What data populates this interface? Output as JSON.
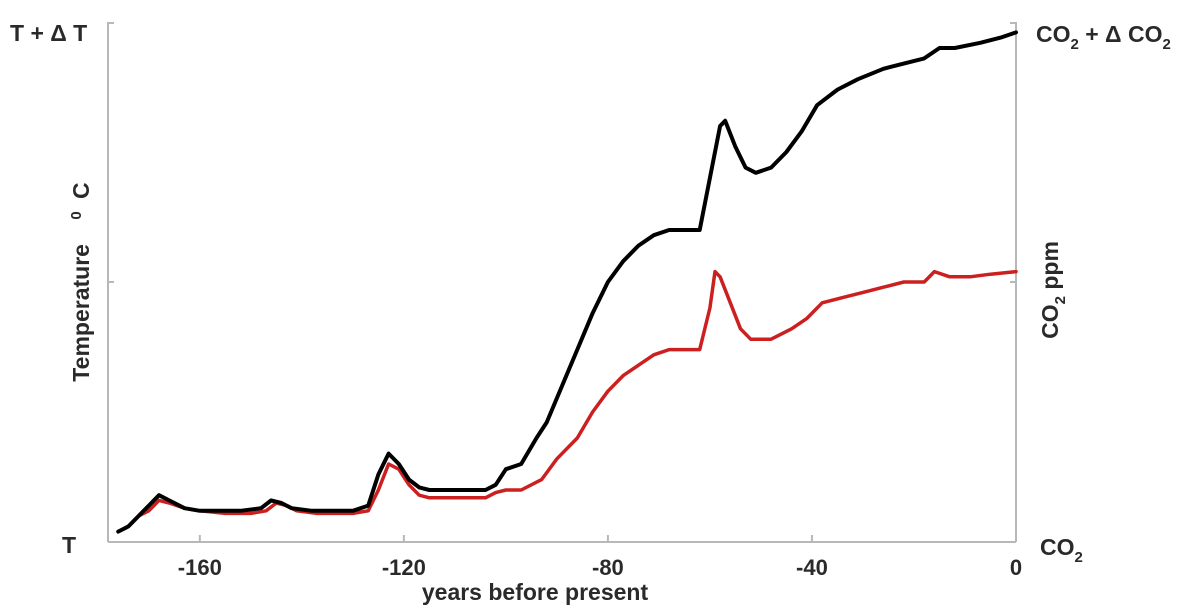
{
  "chart_data": {
    "type": "line",
    "xlabel": "years before present",
    "x_ticks": [
      "-160",
      "-120",
      "-80",
      "-40",
      "0"
    ],
    "x_tick_values": [
      -160,
      -120,
      -80,
      -40,
      0
    ],
    "xlim": [
      -178,
      0
    ],
    "left_axis": {
      "label_text": "Temperature",
      "label_superscript": "0",
      "label_unit": "C",
      "top_label": "T + Δ T",
      "bottom_label": "T"
    },
    "right_axis": {
      "label_main": "CO",
      "label_sub": "2",
      "label_unit": " ppm",
      "top_main": "CO",
      "top_sub": "2",
      "top_rest": " + Δ CO",
      "top_sub2": "2",
      "bottom_main": "CO",
      "bottom_sub": "2"
    },
    "ylim": [
      0,
      1
    ],
    "grid": false,
    "series": [
      {
        "color": "#000000",
        "points": [
          [
            -176,
            0.02
          ],
          [
            -174,
            0.03
          ],
          [
            -172,
            0.05
          ],
          [
            -170,
            0.07
          ],
          [
            -168,
            0.09
          ],
          [
            -166,
            0.08
          ],
          [
            -163,
            0.065
          ],
          [
            -160,
            0.06
          ],
          [
            -156,
            0.06
          ],
          [
            -152,
            0.06
          ],
          [
            -148,
            0.065
          ],
          [
            -146,
            0.08
          ],
          [
            -144,
            0.075
          ],
          [
            -142,
            0.065
          ],
          [
            -138,
            0.06
          ],
          [
            -134,
            0.06
          ],
          [
            -130,
            0.06
          ],
          [
            -127,
            0.07
          ],
          [
            -125,
            0.13
          ],
          [
            -123,
            0.17
          ],
          [
            -121,
            0.15
          ],
          [
            -119,
            0.12
          ],
          [
            -117,
            0.105
          ],
          [
            -115,
            0.1
          ],
          [
            -110,
            0.1
          ],
          [
            -104,
            0.1
          ],
          [
            -102,
            0.11
          ],
          [
            -100,
            0.14
          ],
          [
            -97,
            0.15
          ],
          [
            -94,
            0.2
          ],
          [
            -92,
            0.23
          ],
          [
            -89,
            0.3
          ],
          [
            -86,
            0.37
          ],
          [
            -83,
            0.44
          ],
          [
            -80,
            0.5
          ],
          [
            -77,
            0.54
          ],
          [
            -74,
            0.57
          ],
          [
            -71,
            0.59
          ],
          [
            -68,
            0.6
          ],
          [
            -65,
            0.6
          ],
          [
            -62,
            0.6
          ],
          [
            -60,
            0.7
          ],
          [
            -58,
            0.8
          ],
          [
            -57,
            0.81
          ],
          [
            -55,
            0.76
          ],
          [
            -53,
            0.72
          ],
          [
            -51,
            0.71
          ],
          [
            -48,
            0.72
          ],
          [
            -45,
            0.75
          ],
          [
            -42,
            0.79
          ],
          [
            -39,
            0.84
          ],
          [
            -35,
            0.87
          ],
          [
            -31,
            0.89
          ],
          [
            -26,
            0.91
          ],
          [
            -22,
            0.92
          ],
          [
            -18,
            0.93
          ],
          [
            -15,
            0.95
          ],
          [
            -12,
            0.95
          ],
          [
            -7,
            0.96
          ],
          [
            -3,
            0.97
          ],
          [
            0,
            0.98
          ]
        ]
      },
      {
        "color": "#cc2020",
        "points": [
          [
            -176,
            0.02
          ],
          [
            -174,
            0.03
          ],
          [
            -172,
            0.05
          ],
          [
            -170,
            0.06
          ],
          [
            -168,
            0.08
          ],
          [
            -166,
            0.075
          ],
          [
            -163,
            0.065
          ],
          [
            -160,
            0.06
          ],
          [
            -155,
            0.055
          ],
          [
            -150,
            0.055
          ],
          [
            -147,
            0.06
          ],
          [
            -145,
            0.075
          ],
          [
            -143,
            0.07
          ],
          [
            -141,
            0.06
          ],
          [
            -137,
            0.055
          ],
          [
            -133,
            0.055
          ],
          [
            -130,
            0.055
          ],
          [
            -127,
            0.06
          ],
          [
            -125,
            0.1
          ],
          [
            -123,
            0.15
          ],
          [
            -121,
            0.14
          ],
          [
            -119,
            0.11
          ],
          [
            -117,
            0.09
          ],
          [
            -115,
            0.085
          ],
          [
            -110,
            0.085
          ],
          [
            -104,
            0.085
          ],
          [
            -102,
            0.095
          ],
          [
            -100,
            0.1
          ],
          [
            -97,
            0.1
          ],
          [
            -93,
            0.12
          ],
          [
            -90,
            0.16
          ],
          [
            -86,
            0.2
          ],
          [
            -83,
            0.25
          ],
          [
            -80,
            0.29
          ],
          [
            -77,
            0.32
          ],
          [
            -74,
            0.34
          ],
          [
            -71,
            0.36
          ],
          [
            -68,
            0.37
          ],
          [
            -65,
            0.37
          ],
          [
            -62,
            0.37
          ],
          [
            -60,
            0.45
          ],
          [
            -59,
            0.52
          ],
          [
            -58,
            0.51
          ],
          [
            -56,
            0.46
          ],
          [
            -54,
            0.41
          ],
          [
            -52,
            0.39
          ],
          [
            -48,
            0.39
          ],
          [
            -44,
            0.41
          ],
          [
            -41,
            0.43
          ],
          [
            -38,
            0.46
          ],
          [
            -34,
            0.47
          ],
          [
            -30,
            0.48
          ],
          [
            -26,
            0.49
          ],
          [
            -22,
            0.5
          ],
          [
            -18,
            0.5
          ],
          [
            -16,
            0.52
          ],
          [
            -13,
            0.51
          ],
          [
            -9,
            0.51
          ],
          [
            -5,
            0.515
          ],
          [
            0,
            0.52
          ]
        ]
      }
    ]
  }
}
